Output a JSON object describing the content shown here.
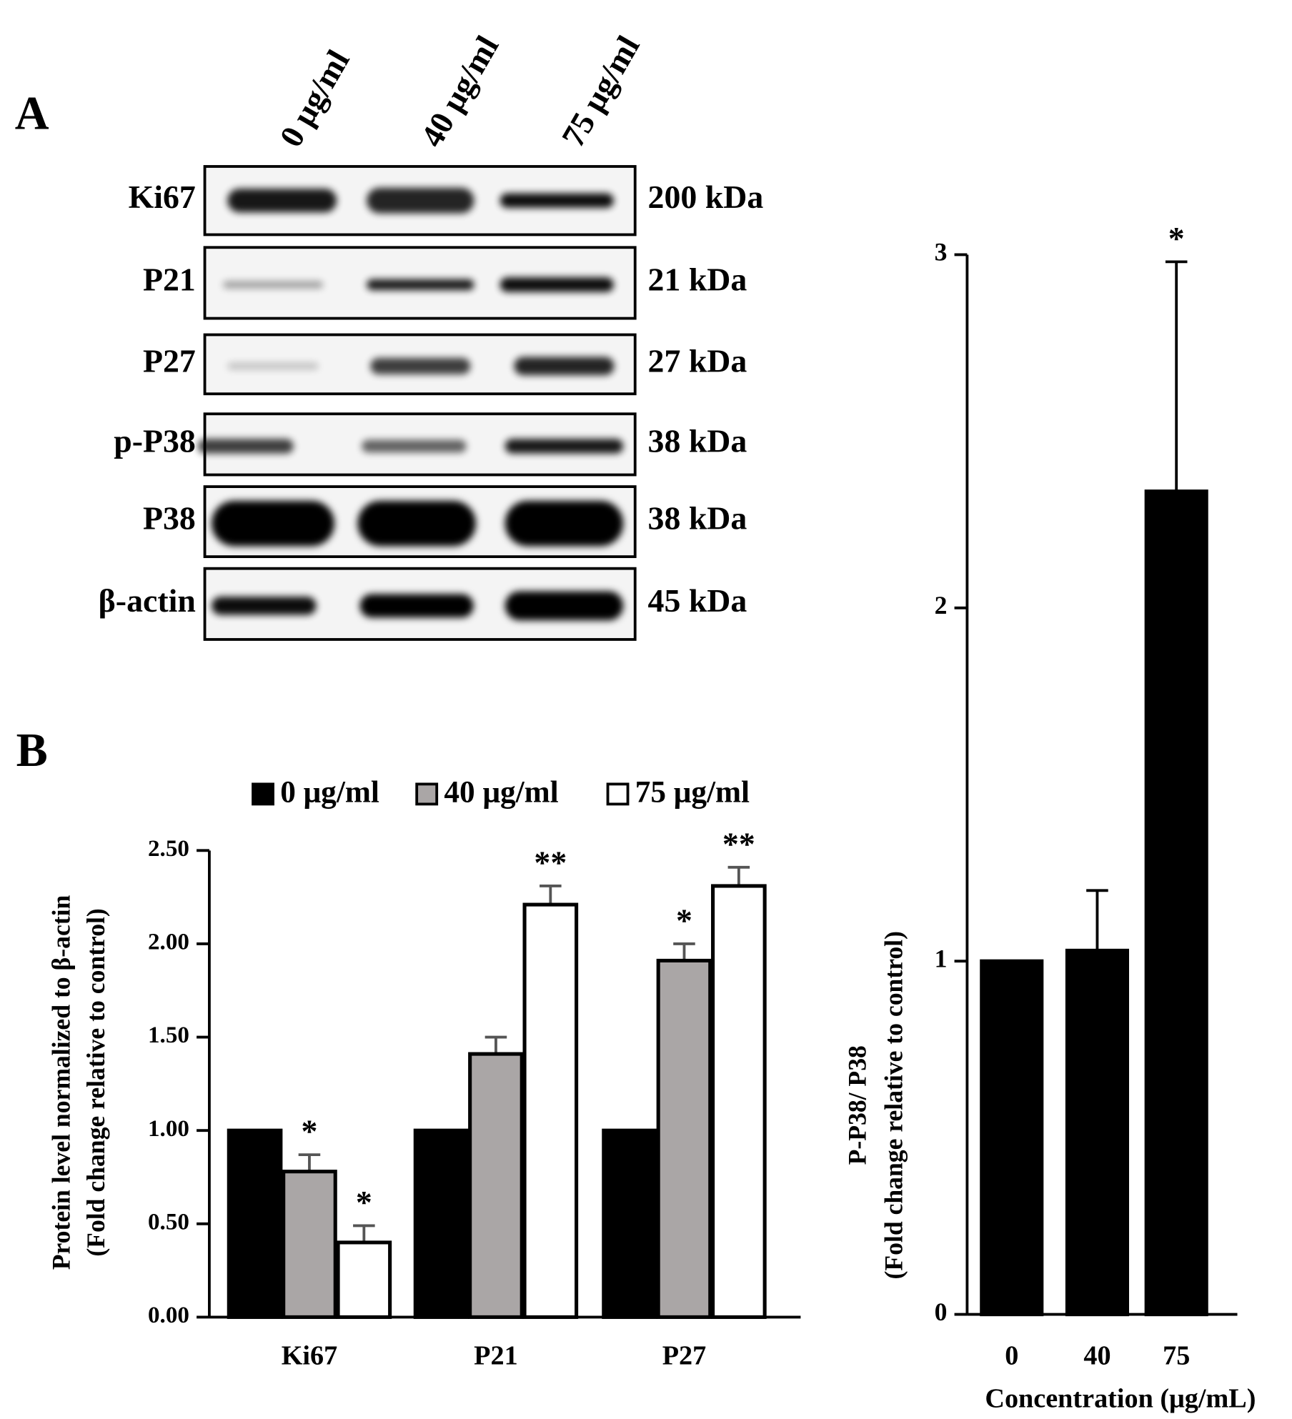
{
  "panel_a": {
    "label": "A",
    "lanes": [
      "0 μg/ml",
      "40 μg/ml",
      "75 μg/ml"
    ],
    "rows": [
      {
        "protein": "Ki67",
        "size": "200 kDa"
      },
      {
        "protein": "P21",
        "size": "21 kDa"
      },
      {
        "protein": "P27",
        "size": "27 kDa"
      },
      {
        "protein": "p-P38",
        "size": "38 kDa"
      },
      {
        "protein": "P38",
        "size": "38 kDa"
      },
      {
        "protein": "β-actin",
        "size": "45 kDa"
      }
    ]
  },
  "panel_b": {
    "label": "B"
  },
  "chart_data": [
    {
      "type": "bar",
      "ylabel": [
        "Protein level normalized to β-actin",
        "(Fold change relative to control)"
      ],
      "categories": [
        "Ki67",
        "P21",
        "P27"
      ],
      "series": [
        {
          "name": "0 μg/ml",
          "color": "#000000",
          "values": [
            1,
            1,
            1
          ],
          "errors": [
            0,
            0,
            0
          ],
          "significance": [
            null,
            null,
            null
          ]
        },
        {
          "name": "40 μg/ml",
          "color": "#aaa6a6",
          "values": [
            0.78,
            1.41,
            1.91
          ],
          "errors": [
            0.09,
            0.09,
            0.09
          ],
          "significance": [
            "*",
            null,
            "*"
          ]
        },
        {
          "name": "75 μg/ml",
          "color": "#ffffff",
          "values": [
            0.4,
            2.21,
            2.31
          ],
          "errors": [
            0.09,
            0.1,
            0.1
          ],
          "significance": [
            "*",
            "**",
            "**"
          ]
        }
      ],
      "ylim": [
        0,
        2.5
      ],
      "yticks": [
        {
          "value": 0,
          "label": "0.00"
        },
        {
          "value": 0.5,
          "label": "0.50"
        },
        {
          "value": 1,
          "label": "1.00"
        },
        {
          "value": 1.5,
          "label": "1.50"
        },
        {
          "value": 2,
          "label": "2.00"
        },
        {
          "value": 2.5,
          "label": "2.50"
        }
      ],
      "legend": "top"
    },
    {
      "type": "bar",
      "ylabel": [
        "P-P38/ P38",
        "(Fold change relative to control)"
      ],
      "xlabel": "Concentration (μg/mL)",
      "categories": [
        "0",
        "40",
        "75"
      ],
      "values": [
        1,
        1.03,
        2.33
      ],
      "errors": [
        0,
        0.17,
        0.65
      ],
      "significance": [
        null,
        null,
        "*"
      ],
      "color": "#000000",
      "ylim": [
        0,
        3
      ],
      "yticks": [
        0,
        1,
        2,
        3
      ]
    }
  ]
}
